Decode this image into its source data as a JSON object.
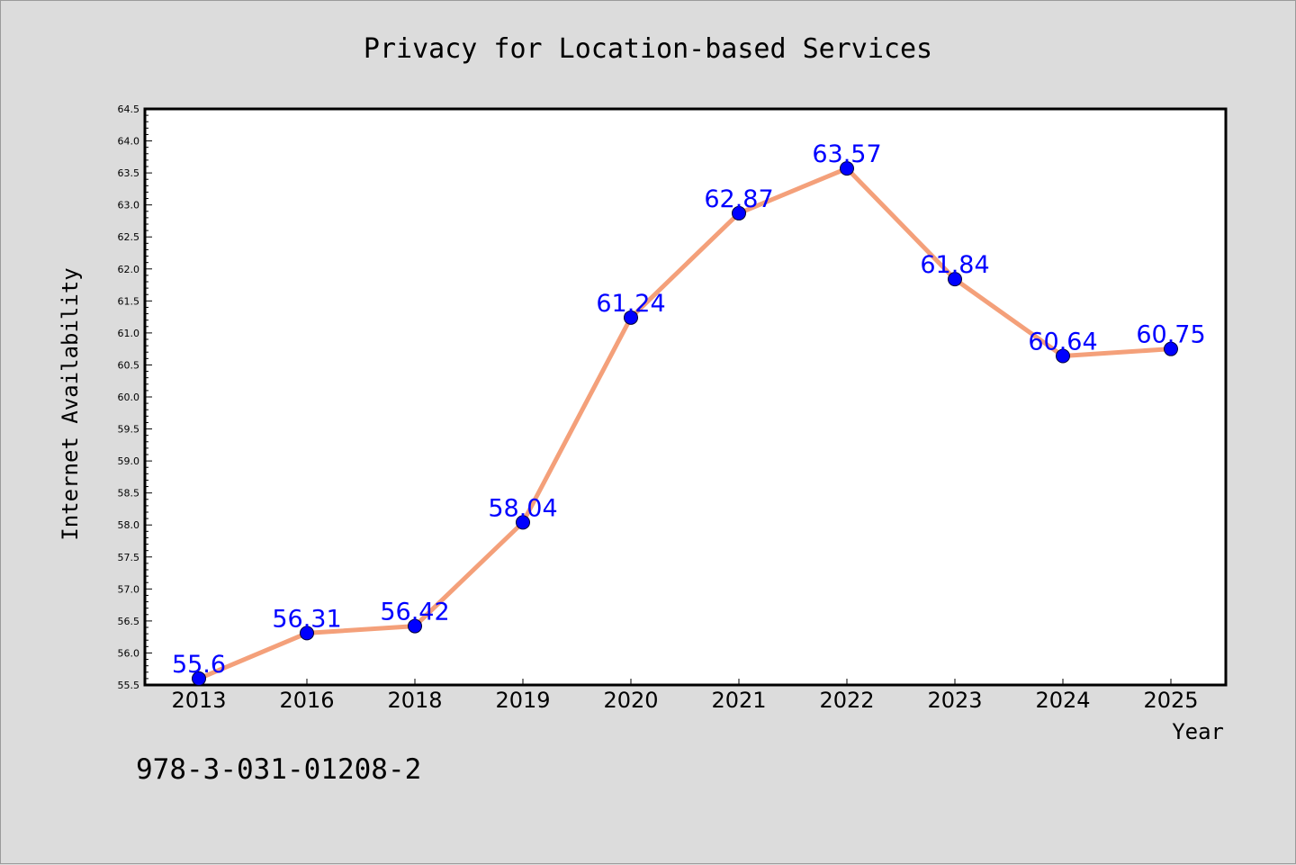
{
  "chart_data": {
    "type": "line",
    "title": "Privacy for Location-based Services",
    "xlabel": "Year",
    "ylabel": "Internet Availability",
    "categories": [
      "2013",
      "2016",
      "2018",
      "2019",
      "2020",
      "2021",
      "2022",
      "2023",
      "2024",
      "2025"
    ],
    "series": [
      {
        "values": [
          55.6,
          56.31,
          56.42,
          58.04,
          61.24,
          62.87,
          63.57,
          61.84,
          60.64,
          60.75
        ]
      }
    ],
    "data_labels": [
      "55.6",
      "56.31",
      "56.42",
      "58.04",
      "61.24",
      "62.87",
      "63.57",
      "61.84",
      "60.64",
      "60.75"
    ],
    "ylim": [
      55.5,
      64.5
    ],
    "yticks": [
      "55.5",
      "56.0",
      "56.5",
      "57.0",
      "57.5",
      "58.0",
      "58.5",
      "59.0",
      "59.5",
      "60.0",
      "60.5",
      "61.0",
      "61.5",
      "62.0",
      "62.5",
      "63.0",
      "63.5",
      "64.0",
      "64.5"
    ],
    "grid": false,
    "colors": {
      "line": "#f4a07a",
      "marker": "#0000ff",
      "label": "#0000ff"
    }
  },
  "footnote": "978-3-031-01208-2"
}
